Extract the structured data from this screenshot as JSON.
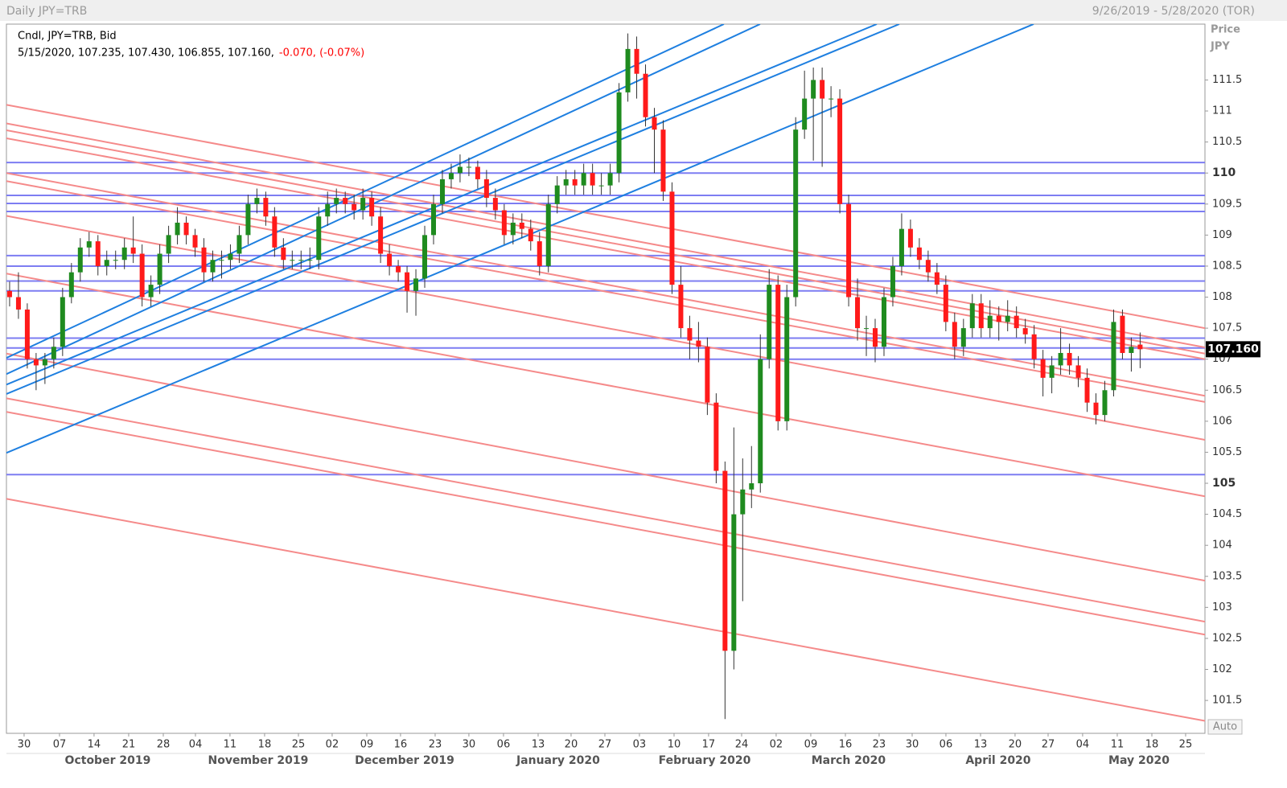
{
  "header": {
    "title": "Daily JPY=TRB",
    "date_range": "9/26/2019 - 5/28/2020 (TOR)"
  },
  "chart_data": {
    "type": "candlestick",
    "legend_title": "Cndl, JPY=TRB, Bid",
    "legend_values": "5/15/2020, 107.235, 107.430, 106.855, 107.160,",
    "legend_change": "-0.070, (-0.07%)",
    "y_axis_label": "Price",
    "y_axis_unit": "JPY",
    "last_price_label": "107.160",
    "scale_mode": "Auto",
    "up_color": "#1f8b1f",
    "down_color": "#ff1a1a",
    "wick_color": "#333333",
    "xlim": [
      -0.36,
      135.34
    ],
    "ylim": [
      100.97,
      112.4
    ],
    "yticks": [
      101.5,
      102,
      102.5,
      103,
      103.5,
      104,
      104.5,
      105,
      105.5,
      106,
      106.5,
      107,
      107.5,
      108,
      108.5,
      109,
      109.5,
      110,
      110.5,
      111,
      111.5
    ],
    "xticks": [
      {
        "value": 1.64,
        "label": "30"
      },
      {
        "value": 5.65,
        "label": "07"
      },
      {
        "value": 9.56,
        "label": "14"
      },
      {
        "value": 13.48,
        "label": "21"
      },
      {
        "value": 17.4,
        "label": "28"
      },
      {
        "value": 21.04,
        "label": "04"
      },
      {
        "value": 24.95,
        "label": "11"
      },
      {
        "value": 28.87,
        "label": "18"
      },
      {
        "value": 32.7,
        "label": "25"
      },
      {
        "value": 36.52,
        "label": "02"
      },
      {
        "value": 40.44,
        "label": "09"
      },
      {
        "value": 44.26,
        "label": "16"
      },
      {
        "value": 48.18,
        "label": "23"
      },
      {
        "value": 52.0,
        "label": "30"
      },
      {
        "value": 55.92,
        "label": "06"
      },
      {
        "value": 59.84,
        "label": "13"
      },
      {
        "value": 63.57,
        "label": "20"
      },
      {
        "value": 67.4,
        "label": "27"
      },
      {
        "value": 71.31,
        "label": "03"
      },
      {
        "value": 75.23,
        "label": "10"
      },
      {
        "value": 79.14,
        "label": "17"
      },
      {
        "value": 82.88,
        "label": "24"
      },
      {
        "value": 86.79,
        "label": "02"
      },
      {
        "value": 90.71,
        "label": "09"
      },
      {
        "value": 94.63,
        "label": "16"
      },
      {
        "value": 98.45,
        "label": "23"
      },
      {
        "value": 102.19,
        "label": "30"
      },
      {
        "value": 106.01,
        "label": "06"
      },
      {
        "value": 109.93,
        "label": "13"
      },
      {
        "value": 113.84,
        "label": "20"
      },
      {
        "value": 117.58,
        "label": "27"
      },
      {
        "value": 121.49,
        "label": "04"
      },
      {
        "value": 125.41,
        "label": "11"
      },
      {
        "value": 129.33,
        "label": "18"
      },
      {
        "value": 133.15,
        "label": "25"
      }
    ],
    "month_ticks": [
      {
        "value": 11.11,
        "label": "October 2019"
      },
      {
        "value": 28.14,
        "label": "November 2019"
      },
      {
        "value": 44.72,
        "label": "December 2019"
      },
      {
        "value": 62.11,
        "label": "January 2020"
      },
      {
        "value": 78.69,
        "label": "February 2020"
      },
      {
        "value": 94.99,
        "label": "March 2020"
      },
      {
        "value": 111.93,
        "label": "April 2020"
      },
      {
        "value": 127.87,
        "label": "May 2020"
      }
    ],
    "candles": [
      [
        108.1,
        108.25,
        107.85,
        108.0
      ],
      [
        108.0,
        108.4,
        107.65,
        107.8
      ],
      [
        107.8,
        107.9,
        106.85,
        107.0
      ],
      [
        107.0,
        107.1,
        106.5,
        106.9
      ],
      [
        106.9,
        107.1,
        106.6,
        107.0
      ],
      [
        107.0,
        107.35,
        106.85,
        107.2
      ],
      [
        107.2,
        108.15,
        107.05,
        108.0
      ],
      [
        108.0,
        108.55,
        107.9,
        108.4
      ],
      [
        108.4,
        108.95,
        108.25,
        108.8
      ],
      [
        108.8,
        109.05,
        108.65,
        108.9
      ],
      [
        108.9,
        109.0,
        108.35,
        108.5
      ],
      [
        108.5,
        108.75,
        108.35,
        108.6
      ],
      [
        108.6,
        108.75,
        108.45,
        108.6
      ],
      [
        108.6,
        108.95,
        108.45,
        108.8
      ],
      [
        108.8,
        109.3,
        108.55,
        108.7
      ],
      [
        108.7,
        108.85,
        107.85,
        108.0
      ],
      [
        108.0,
        108.35,
        107.85,
        108.2
      ],
      [
        108.2,
        108.85,
        108.05,
        108.7
      ],
      [
        108.7,
        109.15,
        108.55,
        109.0
      ],
      [
        109.0,
        109.45,
        108.85,
        109.2
      ],
      [
        109.2,
        109.3,
        108.85,
        109.0
      ],
      [
        109.0,
        109.1,
        108.65,
        108.8
      ],
      [
        108.8,
        108.95,
        108.25,
        108.4
      ],
      [
        108.4,
        108.75,
        108.25,
        108.6
      ],
      [
        108.6,
        108.75,
        108.3,
        108.6
      ],
      [
        108.6,
        108.85,
        108.45,
        108.7
      ],
      [
        108.7,
        109.15,
        108.55,
        109.0
      ],
      [
        109.0,
        109.65,
        108.85,
        109.5
      ],
      [
        109.5,
        109.75,
        109.35,
        109.6
      ],
      [
        109.6,
        109.7,
        109.15,
        109.3
      ],
      [
        109.3,
        109.45,
        108.65,
        108.8
      ],
      [
        108.8,
        108.95,
        108.45,
        108.6
      ],
      [
        108.6,
        108.75,
        108.45,
        108.6
      ],
      [
        108.6,
        108.75,
        108.45,
        108.6
      ],
      [
        108.6,
        108.8,
        108.45,
        108.6
      ],
      [
        108.6,
        109.45,
        108.45,
        109.3
      ],
      [
        109.3,
        109.7,
        109.15,
        109.5
      ],
      [
        109.5,
        109.75,
        109.35,
        109.6
      ],
      [
        109.6,
        109.7,
        109.35,
        109.5
      ],
      [
        109.5,
        109.65,
        109.25,
        109.4
      ],
      [
        109.4,
        109.75,
        109.25,
        109.6
      ],
      [
        109.6,
        109.7,
        109.15,
        109.3
      ],
      [
        109.3,
        109.45,
        108.55,
        108.7
      ],
      [
        108.7,
        108.85,
        108.35,
        108.5
      ],
      [
        108.5,
        108.6,
        108.25,
        108.4
      ],
      [
        108.4,
        108.5,
        107.75,
        108.1
      ],
      [
        108.1,
        108.45,
        107.7,
        108.3
      ],
      [
        108.3,
        109.15,
        108.15,
        109.0
      ],
      [
        109.0,
        109.65,
        108.85,
        109.5
      ],
      [
        109.5,
        110.05,
        109.35,
        109.9
      ],
      [
        109.9,
        110.15,
        109.75,
        110.0
      ],
      [
        110.0,
        110.3,
        109.85,
        110.1
      ],
      [
        110.1,
        110.25,
        109.95,
        110.1
      ],
      [
        110.1,
        110.2,
        109.75,
        109.9
      ],
      [
        109.9,
        110.05,
        109.45,
        109.6
      ],
      [
        109.6,
        109.75,
        109.25,
        109.4
      ],
      [
        109.4,
        109.5,
        108.85,
        109.0
      ],
      [
        109.0,
        109.35,
        108.85,
        109.2
      ],
      [
        109.2,
        109.35,
        108.95,
        109.1
      ],
      [
        109.1,
        109.25,
        108.75,
        108.9
      ],
      [
        108.9,
        109.05,
        108.35,
        108.5
      ],
      [
        108.5,
        109.65,
        108.4,
        109.5
      ],
      [
        109.5,
        109.95,
        109.35,
        109.8
      ],
      [
        109.8,
        110.05,
        109.65,
        109.9
      ],
      [
        109.9,
        110.05,
        109.65,
        109.8
      ],
      [
        109.8,
        110.15,
        109.65,
        110.0
      ],
      [
        110.0,
        110.15,
        109.65,
        109.8
      ],
      [
        109.8,
        110.0,
        109.65,
        109.8
      ],
      [
        109.8,
        110.15,
        109.65,
        110.0
      ],
      [
        110.0,
        111.45,
        109.85,
        111.3
      ],
      [
        111.3,
        112.25,
        111.15,
        112.0
      ],
      [
        112.0,
        112.2,
        111.2,
        111.6
      ],
      [
        111.6,
        111.75,
        110.75,
        110.9
      ],
      [
        110.9,
        111.05,
        110.0,
        110.7
      ],
      [
        110.7,
        110.85,
        109.55,
        109.7
      ],
      [
        109.7,
        109.85,
        108.05,
        108.2
      ],
      [
        108.2,
        108.5,
        107.35,
        107.5
      ],
      [
        107.5,
        107.7,
        107.0,
        107.3
      ],
      [
        107.3,
        107.6,
        106.95,
        107.2
      ],
      [
        107.2,
        107.35,
        106.1,
        106.3
      ],
      [
        106.3,
        106.45,
        105.0,
        105.2
      ],
      [
        105.2,
        105.35,
        101.2,
        102.3
      ],
      [
        102.3,
        105.9,
        102.0,
        104.5
      ],
      [
        104.5,
        105.4,
        103.1,
        104.9
      ],
      [
        104.9,
        105.6,
        104.6,
        105.0
      ],
      [
        105.0,
        107.4,
        104.85,
        107.0
      ],
      [
        107.0,
        108.45,
        106.85,
        108.2
      ],
      [
        108.2,
        108.35,
        105.85,
        106.0
      ],
      [
        106.0,
        108.2,
        105.85,
        108.0
      ],
      [
        108.0,
        110.9,
        107.85,
        110.7
      ],
      [
        110.7,
        111.65,
        110.55,
        111.2
      ],
      [
        111.2,
        111.7,
        110.2,
        111.5
      ],
      [
        111.5,
        111.7,
        110.1,
        111.2
      ],
      [
        111.2,
        111.4,
        110.9,
        111.2
      ],
      [
        111.2,
        111.35,
        109.35,
        109.5
      ],
      [
        109.5,
        109.65,
        107.85,
        108.0
      ],
      [
        108.0,
        108.3,
        107.3,
        107.5
      ],
      [
        107.5,
        107.7,
        107.05,
        107.5
      ],
      [
        107.5,
        107.65,
        106.95,
        107.2
      ],
      [
        107.2,
        108.15,
        107.05,
        108.0
      ],
      [
        108.0,
        108.65,
        107.85,
        108.5
      ],
      [
        108.5,
        109.35,
        108.35,
        109.1
      ],
      [
        109.1,
        109.25,
        108.65,
        108.8
      ],
      [
        108.8,
        108.95,
        108.45,
        108.6
      ],
      [
        108.6,
        108.75,
        108.25,
        108.4
      ],
      [
        108.4,
        108.55,
        108.05,
        108.2
      ],
      [
        108.2,
        108.35,
        107.45,
        107.6
      ],
      [
        107.6,
        107.75,
        107.0,
        107.2
      ],
      [
        107.2,
        107.65,
        107.05,
        107.5
      ],
      [
        107.5,
        108.05,
        107.35,
        107.9
      ],
      [
        107.9,
        108.05,
        107.35,
        107.5
      ],
      [
        107.5,
        107.95,
        107.35,
        107.7
      ],
      [
        107.7,
        107.85,
        107.3,
        107.6
      ],
      [
        107.6,
        107.95,
        107.45,
        107.7
      ],
      [
        107.7,
        107.85,
        107.35,
        107.5
      ],
      [
        107.5,
        107.65,
        107.25,
        107.4
      ],
      [
        107.4,
        107.55,
        106.85,
        107.0
      ],
      [
        107.0,
        107.15,
        106.4,
        106.7
      ],
      [
        106.7,
        107.05,
        106.45,
        106.9
      ],
      [
        106.9,
        107.5,
        106.75,
        107.1
      ],
      [
        107.1,
        107.25,
        106.75,
        106.9
      ],
      [
        106.9,
        107.05,
        106.55,
        106.7
      ],
      [
        106.7,
        106.85,
        106.15,
        106.3
      ],
      [
        106.3,
        106.45,
        105.95,
        106.1
      ],
      [
        106.1,
        106.65,
        106.0,
        106.5
      ],
      [
        106.5,
        107.8,
        106.4,
        107.6
      ],
      [
        107.7,
        107.8,
        107.0,
        107.1
      ],
      [
        107.1,
        107.35,
        106.8,
        107.2
      ],
      [
        107.235,
        107.43,
        106.855,
        107.16
      ]
    ],
    "horizontal_lines": {
      "color": "#7d7df2",
      "values": [
        110.17,
        110.0,
        109.64,
        109.51,
        109.38,
        108.67,
        108.5,
        108.26,
        108.1,
        107.34,
        107.18,
        107.0,
        105.14
      ]
    },
    "trendlines": [
      {
        "color": "#f58a8a",
        "x": [
          -0.36,
          135.34
        ],
        "y": [
          111.1,
          107.5
        ]
      },
      {
        "color": "#f58a8a",
        "x": [
          -0.36,
          135.34
        ],
        "y": [
          110.8,
          107.19
        ]
      },
      {
        "color": "#f58a8a",
        "x": [
          -0.36,
          135.34
        ],
        "y": [
          110.69,
          107.09
        ]
      },
      {
        "color": "#f58a8a",
        "x": [
          -0.36,
          135.34
        ],
        "y": [
          110.56,
          107.0
        ]
      },
      {
        "color": "#f58a8a",
        "x": [
          -0.36,
          135.34
        ],
        "y": [
          110.0,
          106.41
        ]
      },
      {
        "color": "#f58a8a",
        "x": [
          -0.36,
          135.34
        ],
        "y": [
          109.87,
          106.31
        ]
      },
      {
        "color": "#f58a8a",
        "x": [
          -0.36,
          135.34
        ],
        "y": [
          109.31,
          105.7
        ]
      },
      {
        "color": "#f58a8a",
        "x": [
          -0.36,
          135.34
        ],
        "y": [
          108.38,
          104.79
        ]
      },
      {
        "color": "#f58a8a",
        "x": [
          -0.36,
          135.34
        ],
        "y": [
          107.09,
          103.43
        ]
      },
      {
        "color": "#f58a8a",
        "x": [
          -0.36,
          135.34
        ],
        "y": [
          106.37,
          102.77
        ]
      },
      {
        "color": "#f58a8a",
        "x": [
          -0.36,
          135.34
        ],
        "y": [
          106.15,
          102.56
        ]
      },
      {
        "color": "#f58a8a",
        "x": [
          -0.36,
          135.34
        ],
        "y": [
          104.75,
          101.17
        ]
      },
      {
        "color": "#1e7fe0",
        "x": [
          -0.36,
          80.87
        ],
        "y": [
          107.02,
          112.4
        ]
      },
      {
        "color": "#1e7fe0",
        "x": [
          -0.36,
          84.97
        ],
        "y": [
          106.76,
          112.4
        ]
      },
      {
        "color": "#1e7fe0",
        "x": [
          -0.36,
          98.18
        ],
        "y": [
          106.59,
          112.4
        ]
      },
      {
        "color": "#1e7fe0",
        "x": [
          -0.36,
          100.73
        ],
        "y": [
          106.44,
          112.4
        ]
      },
      {
        "color": "#1e7fe0",
        "x": [
          -0.36,
          115.94
        ],
        "y": [
          105.49,
          112.4
        ]
      }
    ]
  }
}
